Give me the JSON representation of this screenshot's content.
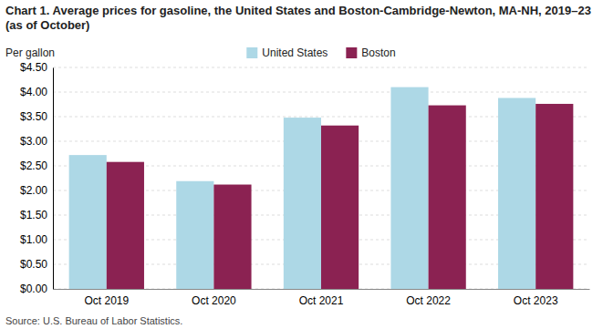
{
  "chart_data": {
    "type": "bar",
    "title": "Chart 1. Average prices for gasoline, the United States and Boston-Cambridge-Newton, MA-NH, 2019–23 (as of October)",
    "ylabel": "Per gallon",
    "source": "Source: U.S. Bureau of Labor Statistics.",
    "categories": [
      "Oct 2019",
      "Oct 2020",
      "Oct 2021",
      "Oct 2022",
      "Oct 2023"
    ],
    "series": [
      {
        "name": "United States",
        "color": "#ADD8E6",
        "values": [
          2.72,
          2.19,
          3.48,
          4.1,
          3.88
        ]
      },
      {
        "name": "Boston",
        "color": "#8B2252",
        "values": [
          2.58,
          2.12,
          3.32,
          3.73,
          3.76
        ]
      }
    ],
    "ylim": [
      0,
      4.5
    ],
    "yticks": [
      {
        "value": 0,
        "label": "$0.00"
      },
      {
        "value": 0.5,
        "label": "$0.50"
      },
      {
        "value": 1,
        "label": "$1.00"
      },
      {
        "value": 1.5,
        "label": "$1.50"
      },
      {
        "value": 2,
        "label": "$2.00"
      },
      {
        "value": 2.5,
        "label": "$2.50"
      },
      {
        "value": 3,
        "label": "$3.00"
      },
      {
        "value": 3.5,
        "label": "$3.50"
      },
      {
        "value": 4,
        "label": "$4.00"
      },
      {
        "value": 4.5,
        "label": "$4.50"
      }
    ],
    "grid": true,
    "legend": "top"
  }
}
